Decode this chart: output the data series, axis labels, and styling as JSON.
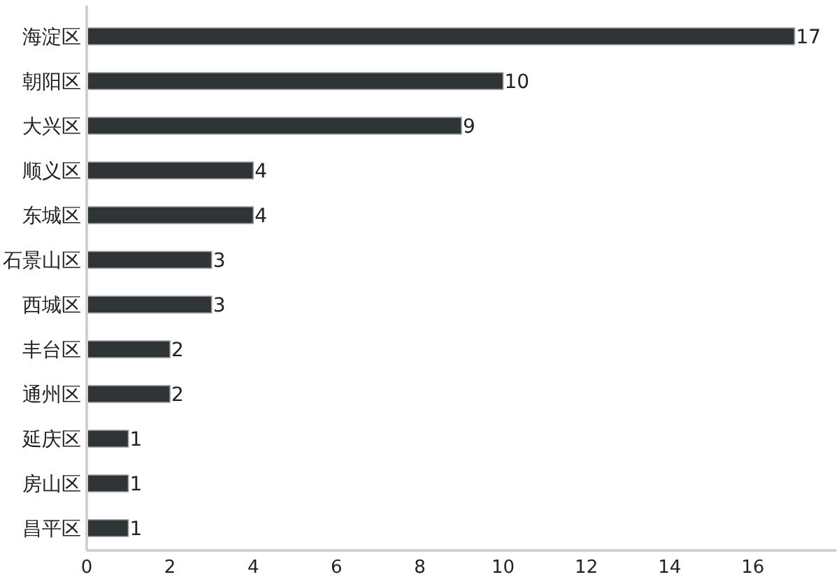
{
  "chart_data": {
    "type": "bar",
    "orientation": "horizontal",
    "categories": [
      "海淀区",
      "朝阳区",
      "大兴区",
      "顺义区",
      "东城区",
      "石景山区",
      "西城区",
      "丰台区",
      "通州区",
      "延庆区",
      "房山区",
      "昌平区"
    ],
    "values": [
      17,
      10,
      9,
      4,
      4,
      3,
      3,
      2,
      2,
      1,
      1,
      1
    ],
    "color": "#2f3537",
    "xlim": [
      0,
      18
    ],
    "xticks": [
      0,
      2,
      4,
      6,
      8,
      10,
      12,
      14,
      16
    ],
    "data_labels": true
  }
}
